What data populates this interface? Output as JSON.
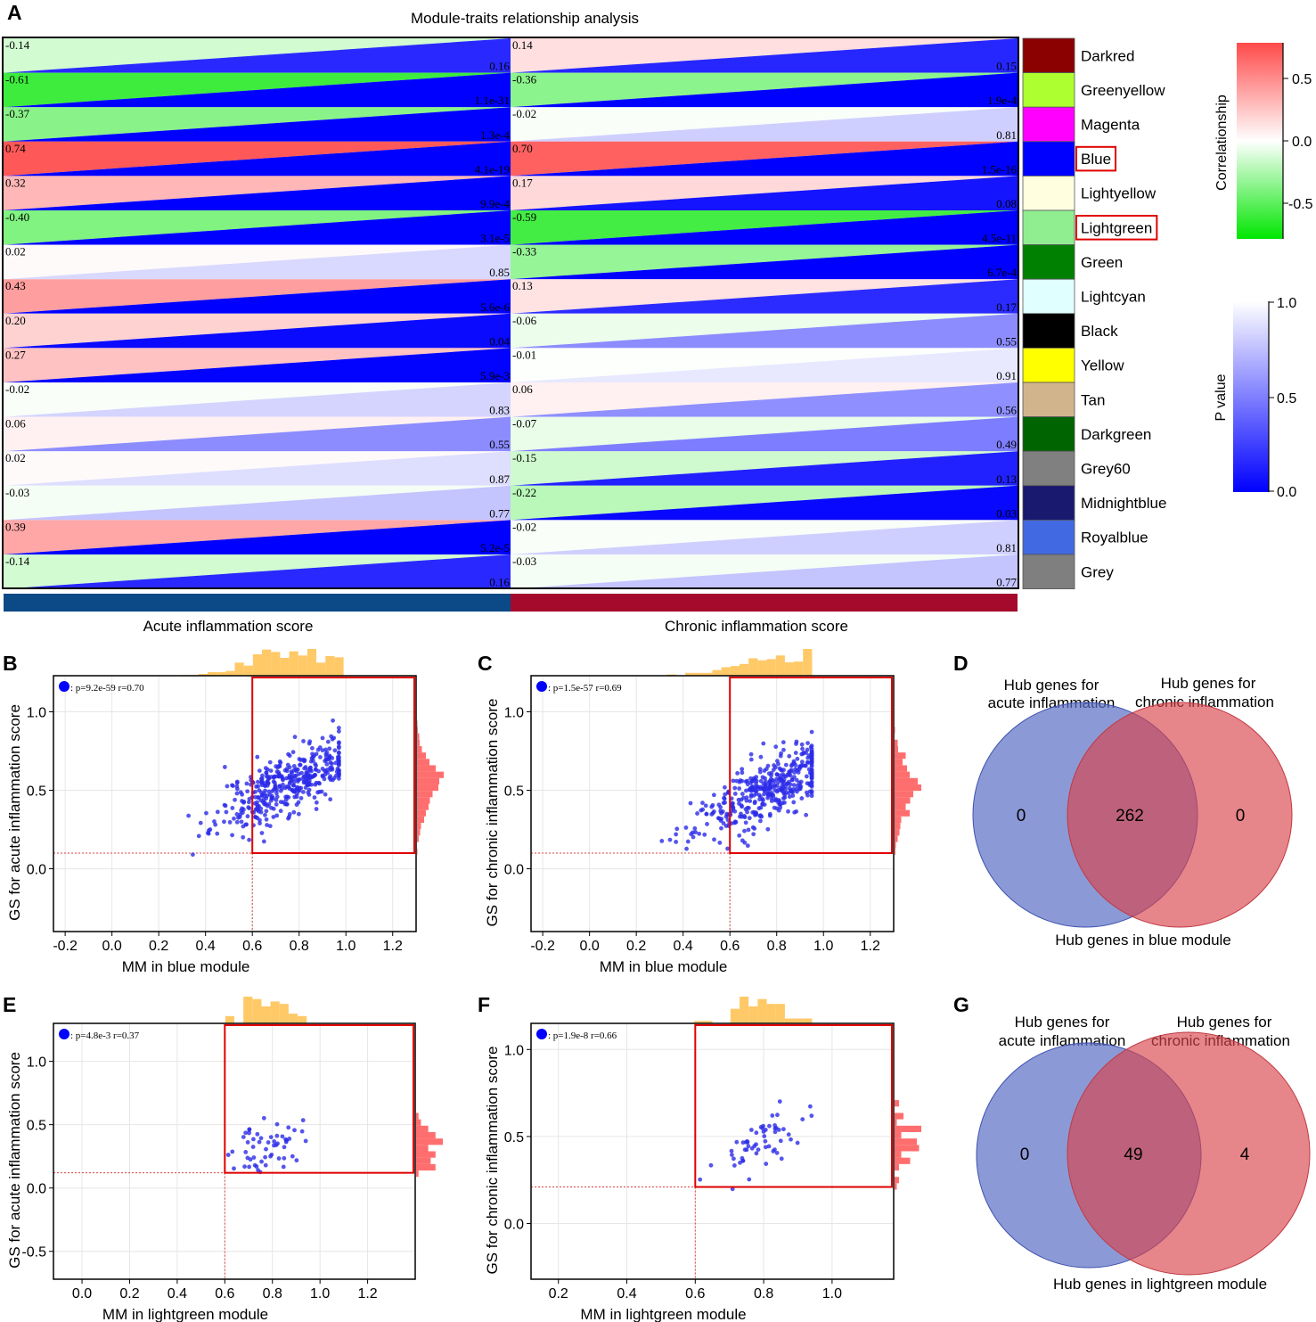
{
  "chart_data": [
    {
      "panel": "A",
      "type": "heatmap",
      "title": "Module-traits relationship analysis",
      "traits": [
        "Acute inflammation score",
        "Chronic inflammation score"
      ],
      "trait_colors": [
        "#0b4a86",
        "#a50a2d"
      ],
      "modules": [
        {
          "name": "Darkred",
          "color": "#8b0000",
          "acute": {
            "r": "-0.14",
            "p": "0.16"
          },
          "chronic": {
            "r": "0.14",
            "p": "0.15"
          }
        },
        {
          "name": "Greenyellow",
          "color": "#adff2f",
          "acute": {
            "r": "-0.61",
            "p": "1.1e-31"
          },
          "chronic": {
            "r": "-0.36",
            "p": "1.9e-4"
          }
        },
        {
          "name": "Magenta",
          "color": "#ff00ff",
          "acute": {
            "r": "-0.37",
            "p": "1.3e-4"
          },
          "chronic": {
            "r": "-0.02",
            "p": "0.81"
          }
        },
        {
          "name": "Blue",
          "color": "#0000ff",
          "acute": {
            "r": "0.74",
            "p": "4.1e-19"
          },
          "chronic": {
            "r": "0.70",
            "p": "1.5e-16"
          },
          "highlighted": true
        },
        {
          "name": "Lightyellow",
          "color": "#ffffe0",
          "acute": {
            "r": "0.32",
            "p": "9.9e-4"
          },
          "chronic": {
            "r": "0.17",
            "p": "0.08"
          }
        },
        {
          "name": "Lightgreen",
          "color": "#90ee90",
          "acute": {
            "r": "-0.40",
            "p": "3.1e-5"
          },
          "chronic": {
            "r": "-0.59",
            "p": "4.5e-11"
          },
          "highlighted": true
        },
        {
          "name": "Green",
          "color": "#008000",
          "acute": {
            "r": "0.02",
            "p": "0.85"
          },
          "chronic": {
            "r": "-0.33",
            "p": "6.7e-4"
          }
        },
        {
          "name": "Lightcyan",
          "color": "#e0ffff",
          "acute": {
            "r": "0.43",
            "p": "5.6e-6"
          },
          "chronic": {
            "r": "0.13",
            "p": "0.17"
          }
        },
        {
          "name": "Black",
          "color": "#000000",
          "acute": {
            "r": "0.20",
            "p": "0.04"
          },
          "chronic": {
            "r": "-0.06",
            "p": "0.55"
          }
        },
        {
          "name": "Yellow",
          "color": "#ffff00",
          "acute": {
            "r": "0.27",
            "p": "5.9e-3"
          },
          "chronic": {
            "r": "-0.01",
            "p": "0.91"
          }
        },
        {
          "name": "Tan",
          "color": "#d2b48c",
          "acute": {
            "r": "-0.02",
            "p": "0.83"
          },
          "chronic": {
            "r": "0.06",
            "p": "0.56"
          }
        },
        {
          "name": "Darkgreen",
          "color": "#006400",
          "acute": {
            "r": "0.06",
            "p": "0.55"
          },
          "chronic": {
            "r": "-0.07",
            "p": "0.49"
          }
        },
        {
          "name": "Grey60",
          "color": "#808080",
          "acute": {
            "r": "0.02",
            "p": "0.87"
          },
          "chronic": {
            "r": "-0.15",
            "p": "0.13"
          }
        },
        {
          "name": "Midnightblue",
          "color": "#191970",
          "acute": {
            "r": "-0.03",
            "p": "0.77"
          },
          "chronic": {
            "r": "-0.22",
            "p": "0.03"
          }
        },
        {
          "name": "Royalblue",
          "color": "#4169e1",
          "acute": {
            "r": "0.39",
            "p": "5.2e-5"
          },
          "chronic": {
            "r": "-0.02",
            "p": "0.81"
          }
        },
        {
          "name": "Grey",
          "color": "#7f7f7f",
          "acute": {
            "r": "-0.14",
            "p": "0.16"
          },
          "chronic": {
            "r": "-0.03",
            "p": "0.77"
          }
        }
      ],
      "correlation_legend": {
        "title": "Correlationship",
        "ticks": [
          "0.5",
          "0.0",
          "-0.5"
        ],
        "range": [
          -0.8,
          0.8
        ]
      },
      "pvalue_legend": {
        "title": "P value",
        "ticks": [
          "1.0",
          "0.5",
          "0.0"
        ],
        "range": [
          0,
          1
        ]
      }
    },
    {
      "panel": "B",
      "type": "scatter",
      "xlabel": "MM in blue module",
      "ylabel": "GS for acute inflammation score",
      "xlim": [
        -0.25,
        1.3
      ],
      "ylim": [
        -0.4,
        1.23
      ],
      "xticks": [
        "-0.2",
        "0.0",
        "0.2",
        "0.4",
        "0.6",
        "0.8",
        "1.0",
        "1.2"
      ],
      "yticks": [
        "0.0",
        "0.5",
        "1.0"
      ],
      "legend": ": p=9.2e-59 r=0.70",
      "thresholds": {
        "x": 0.6,
        "y": 0.1
      },
      "n_points": 420,
      "x_center": 0.75,
      "x_sd": 0.15,
      "slope": 0.7,
      "intercept": 0.02,
      "noise": 0.1,
      "x_min": 0.06,
      "x_max": 0.97
    },
    {
      "panel": "C",
      "type": "scatter",
      "xlabel": "MM in blue module",
      "ylabel": "GS for chronic inflammation score",
      "xlim": [
        -0.25,
        1.3
      ],
      "ylim": [
        -0.4,
        1.23
      ],
      "xticks": [
        "-0.2",
        "0.0",
        "0.2",
        "0.4",
        "0.6",
        "0.8",
        "1.0",
        "1.2"
      ],
      "yticks": [
        "0.0",
        "0.5",
        "1.0"
      ],
      "legend": ": p=1.5e-57 r=0.69",
      "thresholds": {
        "x": 0.6,
        "y": 0.1
      },
      "n_points": 420,
      "x_center": 0.75,
      "x_sd": 0.15,
      "slope": 0.7,
      "intercept": -0.03,
      "noise": 0.1,
      "x_min": 0.06,
      "x_max": 0.95
    },
    {
      "panel": "E",
      "type": "scatter",
      "xlabel": "MM in lightgreen module",
      "ylabel": "GS for acute inflammation score",
      "xlim": [
        -0.12,
        1.4
      ],
      "ylim": [
        -0.72,
        1.3
      ],
      "xticks": [
        "0.0",
        "0.2",
        "0.4",
        "0.6",
        "0.8",
        "1.0",
        "1.2"
      ],
      "yticks": [
        "-0.5",
        "0.0",
        "0.5",
        "1.0"
      ],
      "legend": ": p=4.8e-3 r=0.37",
      "thresholds": {
        "x": 0.6,
        "y": 0.12
      },
      "n_points": 55,
      "x_center": 0.78,
      "x_sd": 0.07,
      "slope": 0.6,
      "intercept": -0.15,
      "noise": 0.1,
      "x_min": 0.35,
      "x_max": 0.95
    },
    {
      "panel": "F",
      "type": "scatter",
      "xlabel": "MM in lightgreen module",
      "ylabel": "GS for chronic inflammation score",
      "xlim": [
        0.12,
        1.18
      ],
      "ylim": [
        -0.32,
        1.15
      ],
      "xticks": [
        "0.2",
        "0.4",
        "0.6",
        "0.8",
        "1.0"
      ],
      "yticks": [
        "0.0",
        "0.5",
        "1.0"
      ],
      "legend": ": p=1.9e-8 r=0.66",
      "thresholds": {
        "x": 0.6,
        "y": 0.21
      },
      "n_points": 58,
      "x_center": 0.8,
      "x_sd": 0.07,
      "slope": 1.0,
      "intercept": -0.32,
      "noise": 0.08,
      "x_min": 0.34,
      "x_max": 0.94
    },
    {
      "panel": "D",
      "type": "venn",
      "left_label": [
        "Hub genes for",
        "acute inflammation"
      ],
      "right_label": [
        "Hub genes for",
        "chronic inflammation"
      ],
      "bottom_label": "Hub genes in blue module",
      "values": {
        "left_only": "0",
        "both": "262",
        "right_only": "0"
      }
    },
    {
      "panel": "G",
      "type": "venn",
      "left_label": [
        "Hub genes for",
        "acute inflammation"
      ],
      "right_label": [
        "Hub genes for",
        "chronic inflammation"
      ],
      "bottom_label": "Hub genes in lightgreen module",
      "values": {
        "left_only": "0",
        "both": "49",
        "right_only": "4"
      }
    }
  ],
  "panel_labels": [
    "A",
    "B",
    "C",
    "D",
    "E",
    "F",
    "G"
  ]
}
